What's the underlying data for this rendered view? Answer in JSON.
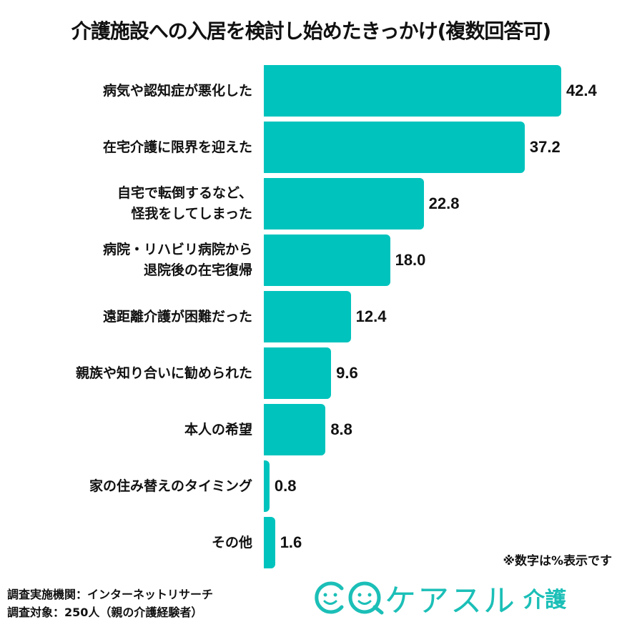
{
  "title": "介護施設への入居を検討し始めたきっかけ(複数回答可)",
  "note": "※数字は%表示です",
  "source": {
    "org": "調査実施機関：インターネットリサーチ",
    "target": "調査対象：250人（親の介護経験者）"
  },
  "logo": {
    "text": "ケアスル",
    "sub": "介護",
    "color": "#1bbfb7"
  },
  "colors": {
    "bar": "#00c3bd",
    "text": "#111111"
  },
  "rows": [
    {
      "line1": "病気や認知症が悪化した",
      "line2": "",
      "value": "42.4"
    },
    {
      "line1": "在宅介護に限界を迎えた",
      "line2": "",
      "value": "37.2"
    },
    {
      "line1": "自宅で転倒するなど、",
      "line2": "怪我をしてしまった",
      "value": "22.8"
    },
    {
      "line1": "病院・リハビリ病院から",
      "line2": "退院後の在宅復帰",
      "value": "18.0"
    },
    {
      "line1": "遠距離介護が困難だった",
      "line2": "",
      "value": "12.4"
    },
    {
      "line1": "親族や知り合いに勧められた",
      "line2": "",
      "value": "9.6"
    },
    {
      "line1": "本人の希望",
      "line2": "",
      "value": "8.8"
    },
    {
      "line1": "家の住み替えのタイミング",
      "line2": "",
      "value": "0.8"
    },
    {
      "line1": "その他",
      "line2": "",
      "value": "1.6"
    }
  ],
  "chart_data": {
    "type": "bar",
    "orientation": "horizontal",
    "title": "介護施設への入居を検討し始めたきっかけ(複数回答可)",
    "categories": [
      "病気や認知症が悪化した",
      "在宅介護に限界を迎えた",
      "自宅で転倒するなど、怪我をしてしまった",
      "病院・リハビリ病院から退院後の在宅復帰",
      "遠距離介護が困難だった",
      "親族や知り合いに勧められた",
      "本人の希望",
      "家の住み替えのタイミング",
      "その他"
    ],
    "values": [
      42.4,
      37.2,
      22.8,
      18.0,
      12.4,
      9.6,
      8.8,
      0.8,
      1.6
    ],
    "unit": "%",
    "xlabel": "",
    "ylabel": "",
    "annotations": [
      "※数字は%表示です"
    ],
    "grid": false,
    "legend": null,
    "color": "#00c3bd"
  }
}
